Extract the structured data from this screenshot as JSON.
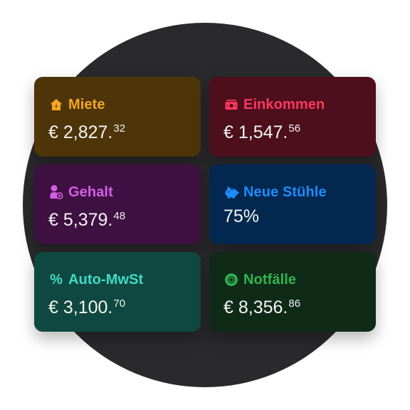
{
  "cards": [
    {
      "label": "Miete",
      "icon": "home-icon",
      "currency": "€",
      "amount_main": "2,827.",
      "amount_cents": "32",
      "background": "#4d3409",
      "accent": "#f5a623"
    },
    {
      "label": "Einkommen",
      "icon": "cash-icon",
      "currency": "€",
      "amount_main": "1,547.",
      "amount_cents": "56",
      "background": "#4d0f1c",
      "accent": "#ff375f"
    },
    {
      "label": "Gehalt",
      "icon": "person-coin-icon",
      "currency": "€",
      "amount_main": "5,379.",
      "amount_cents": "48",
      "background": "#3f1042",
      "accent": "#d65ee8"
    },
    {
      "label": "Neue Stühle",
      "icon": "piggy-bank-icon",
      "text_value": "75%",
      "background": "#02284f",
      "accent": "#1e8cff"
    },
    {
      "label": "Auto-MwSt",
      "icon": "percent-icon",
      "icon_glyph": "%",
      "currency": "€",
      "amount_main": "3,100.",
      "amount_cents": "70",
      "background": "#0f4840",
      "accent": "#3fdcc6"
    },
    {
      "label": "Notfälle",
      "icon": "lifebuoy-icon",
      "currency": "€",
      "amount_main": "8,356.",
      "amount_cents": "86",
      "background": "#0f2b17",
      "accent": "#32b350"
    }
  ]
}
